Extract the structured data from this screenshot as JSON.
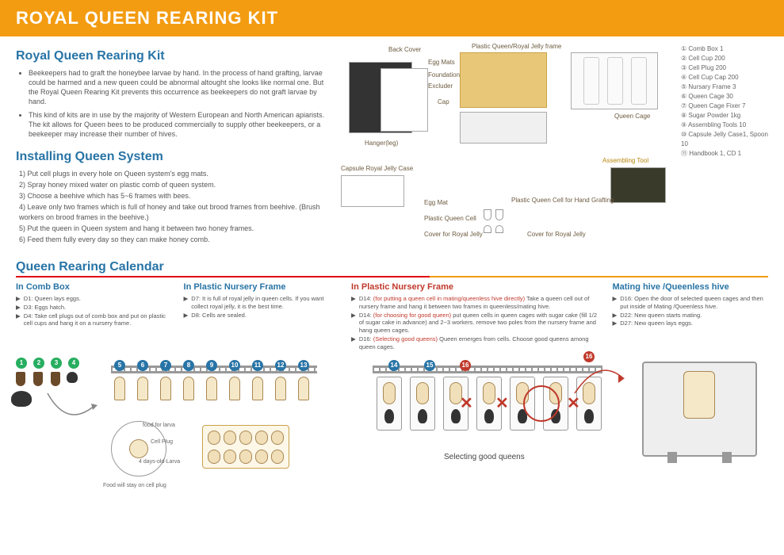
{
  "header": {
    "title": "ROYAL QUEEN REARING KIT"
  },
  "intro": {
    "title": "Royal Queen Rearing Kit",
    "bullets": [
      "Beekeepers had to graft the honeybee larvae by hand. In the process of hand grafting, larvae could be harmed and a new queen could be abnormal altought she looks like normal one. But the Royal Queen Rearing Kit prevents this occurrence as beekeepers do not graft larvae by hand.",
      "This kind of kits are in use by the majority of Western European and North American apiarists. The kit allows for Queen bees to be produced commercially to supply other beekeepers, or a beekeeper may increase their number of hives."
    ]
  },
  "install": {
    "title": "Installing Queen System",
    "steps": [
      "1) Put cell plugs in every hole on Queen system's egg mats.",
      "2) Spray honey mixed water on plastic comb of queen system.",
      "3) Choose a beehive which has 5~6 frames with bees.",
      "4) Leave only two frames which is full of honey and take out brood frames from beehive. (Brush workers on brood frames in the beehive.)",
      "5) Put the queen in Queen system and hang it between two honey frames.",
      "6) Feed them fully every day so they can make honey comb."
    ]
  },
  "diagram_labels": {
    "back_cover": "Back Cover",
    "egg_mats": "Egg Mats",
    "foundation": "Foundation",
    "excluder": "Excluder",
    "cap": "Cap",
    "hanger_leg": "Hanger(leg)",
    "plastic_frame": "Plastic Queen/Royal Jelly frame",
    "queen_cage": "Queen Cage",
    "capsule_case": "Capsule Royal Jelly Case",
    "assembling_tool": "Assembling Tool",
    "egg_mat": "Egg Mat",
    "plastic_cell": "Plastic Queen Cell",
    "cover_royal_jelly": "Cover for Royal Jelly",
    "plastic_cell_hand": "Plastic Queen Cell for Hand Grafting",
    "cover_royal_jelly2": "Cover for Royal Jelly"
  },
  "contents": [
    "① Comb Box 1",
    "② Cell Cup 200",
    "③ Cell Plug 200",
    "④ Cell Cup Cap 200",
    "⑤ Nursary Frame 3",
    "⑥ Queen Cage 30",
    "⑦ Queen Cage Fixer 7",
    "⑧ Sugar Powder 1kg",
    "⑨ Assembling Tools 10",
    "⑩ Capsule Jelly Case1, Spoon 10",
    "⑪ Handbook 1, CD 1"
  ],
  "calendar": {
    "title": "Queen Rearing Calendar",
    "col1": {
      "head": "In Comb Box",
      "items": [
        {
          "b": "▶",
          "t": "D1: Queen lays eggs."
        },
        {
          "b": "▶",
          "t": "D3: Eggs hatch."
        },
        {
          "b": "▶",
          "t": "D4: Take cell plugs out of comb box and put on plastic cell cups and hang it on a nursery frame."
        }
      ]
    },
    "col2": {
      "head": "In Plastic Nursery Frame",
      "items": [
        {
          "b": "▶",
          "t": "D7: It is full of royal jelly in queen cells. If you want collect royal jelly, it is the best time."
        },
        {
          "b": "▶",
          "t": "D8: Cells are sealed."
        }
      ]
    },
    "col3": {
      "head": "In Plastic Nursery Frame",
      "items": [
        {
          "b": "▶",
          "t": "D14: ",
          "r": "(for putting a queen cell in mating/queenless hive directly)",
          "t2": "Take a queen cell out of nursery frame and hang it between two frames in queenless/mating hive."
        },
        {
          "b": "▶",
          "t": "D14: ",
          "r": "(for choosing for good queen)",
          "t2": "put queen cells in queen cages with sugar cake (fill 1/2 of sugar cake in advance) and 2~3 workers. remove two poles from the nursery frame and hang queen cages."
        },
        {
          "b": "▶",
          "t": "D16: ",
          "r": "(Selecting good queens)",
          "t2": "Queen emerges from cells. Choose good queens among queen cages."
        }
      ]
    },
    "col4": {
      "head": "Mating hive /Queenless hive",
      "items": [
        {
          "b": "▶",
          "t": "D16: Open the door of selected queen cages and then put inside of Mating /Queenless hive."
        },
        {
          "b": "▶",
          "t": "D22: New queen starts mating."
        },
        {
          "b": "▶",
          "t": "D27: New queen lays eggs."
        }
      ]
    }
  },
  "bottom": {
    "food_larva": "food for larva",
    "cell_plug": "Cell Plug",
    "four_days": "4 days-old-Larva",
    "food_stay": "Food will stay on cell plug",
    "selecting": "Selecting good queens"
  },
  "colors": {
    "header_bg": "#f39c12",
    "title_blue": "#2874a6",
    "accent_red": "#c0392b",
    "chip_green": "#27ae60",
    "chip_blue": "#2874a6"
  }
}
